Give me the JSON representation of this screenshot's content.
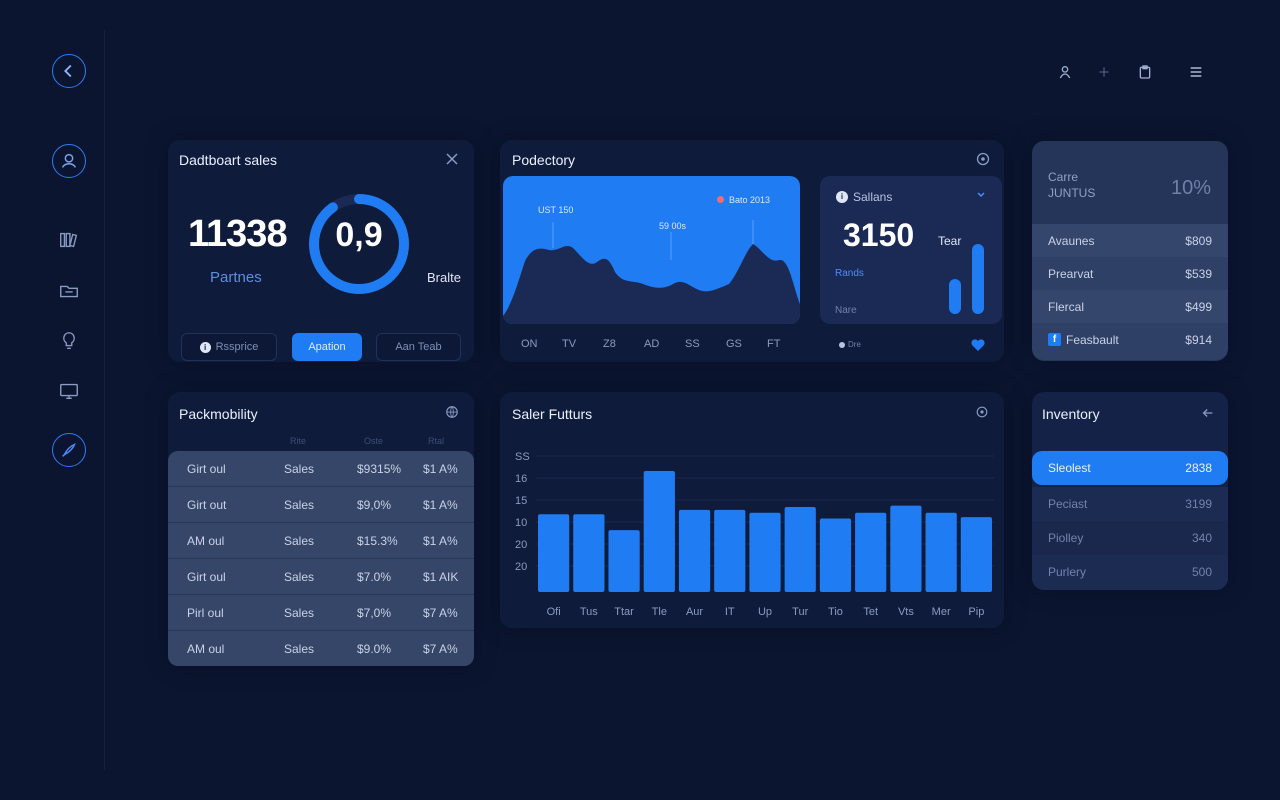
{
  "colors": {
    "background": "#0b1530",
    "card": "#0f1b3a",
    "accent": "#1f7cf2",
    "muted": "#6f80a8"
  },
  "sidebar": {
    "items": [
      {
        "icon": "back-arrow-icon"
      },
      {
        "icon": "user-icon"
      },
      {
        "icon": "library-icon"
      },
      {
        "icon": "folder-icon"
      },
      {
        "icon": "lightbulb-icon"
      },
      {
        "icon": "monitor-icon"
      },
      {
        "icon": "rocket-icon"
      }
    ]
  },
  "topbar": {
    "icons": [
      "user-icon",
      "plus-icon",
      "clipboard-icon",
      "menu-icon"
    ]
  },
  "sales_card": {
    "title": "Dadtboart sales",
    "big_number": "11338",
    "big_label": "Partnes",
    "donut_value": "0,9",
    "donut_progress": 0.9,
    "side_label": "Bralte",
    "buttons": [
      "Rssprice",
      "Apation",
      "Aan Teab"
    ]
  },
  "productory_card": {
    "title": "Podectory",
    "area": {
      "annotations": [
        "UST 150",
        "59 00s",
        "Bato 2013"
      ],
      "x_labels": [
        "ON",
        "TV",
        "Z8",
        "AD",
        "SS",
        "GS",
        "FT"
      ]
    },
    "mini": {
      "title": "Sallans",
      "value": "3150",
      "tear_label": "Tear",
      "sub_label": "Rands",
      "foot_label": "Nare",
      "legend_label": "Dre"
    }
  },
  "stat_card": {
    "label_top": "Carre",
    "label_bottom": "JUNTUS",
    "percent": "10%",
    "rows": [
      {
        "label": "Avaunes",
        "value": "$809"
      },
      {
        "label": "Prearvat",
        "value": "$539"
      },
      {
        "label": "Flercal",
        "value": "$499"
      },
      {
        "label": "Feasbault",
        "value": "$914"
      }
    ]
  },
  "mobility_card": {
    "title": "Packmobility",
    "headers": [
      "Rite",
      "Oste",
      "Rtal"
    ],
    "rows": [
      [
        "Girt oul",
        "Sales",
        "$9315%",
        "$1 A%"
      ],
      [
        "Girt out",
        "Sales",
        "$9,0%",
        "$1 A%"
      ],
      [
        "AM oul",
        "Sales",
        "$15.3%",
        "$1 A%"
      ],
      [
        "Girt oul",
        "Sales",
        "$7.0%",
        "$1 AIK"
      ],
      [
        "Pirl oul",
        "Sales",
        "$7,0%",
        "$7 A%"
      ],
      [
        "AM oul",
        "Sales",
        "$9.0%",
        "$7 A%"
      ]
    ]
  },
  "futures_card": {
    "title": "Saler Futturs",
    "chart_data": {
      "type": "bar",
      "categories": [
        "Ofi",
        "Tus",
        "Ttar",
        "Tle",
        "Aur",
        "IT",
        "Up",
        "Tur",
        "Tio",
        "Tet",
        "Vts",
        "Mer",
        "Pip"
      ],
      "y_tick_labels": [
        "SS",
        "16",
        "15",
        "10",
        "20",
        "20"
      ],
      "values": [
        54,
        54,
        43,
        84,
        57,
        57,
        55,
        59,
        51,
        55,
        60,
        55,
        52
      ]
    }
  },
  "inventory_card": {
    "title": "Inventory",
    "rows": [
      {
        "label": "Sleolest",
        "value": "2838",
        "active": true
      },
      {
        "label": "Peciast",
        "value": "3199",
        "active": false
      },
      {
        "label": "Piolley",
        "value": "340",
        "active": false
      },
      {
        "label": "Purlery",
        "value": "500",
        "active": false
      }
    ]
  }
}
